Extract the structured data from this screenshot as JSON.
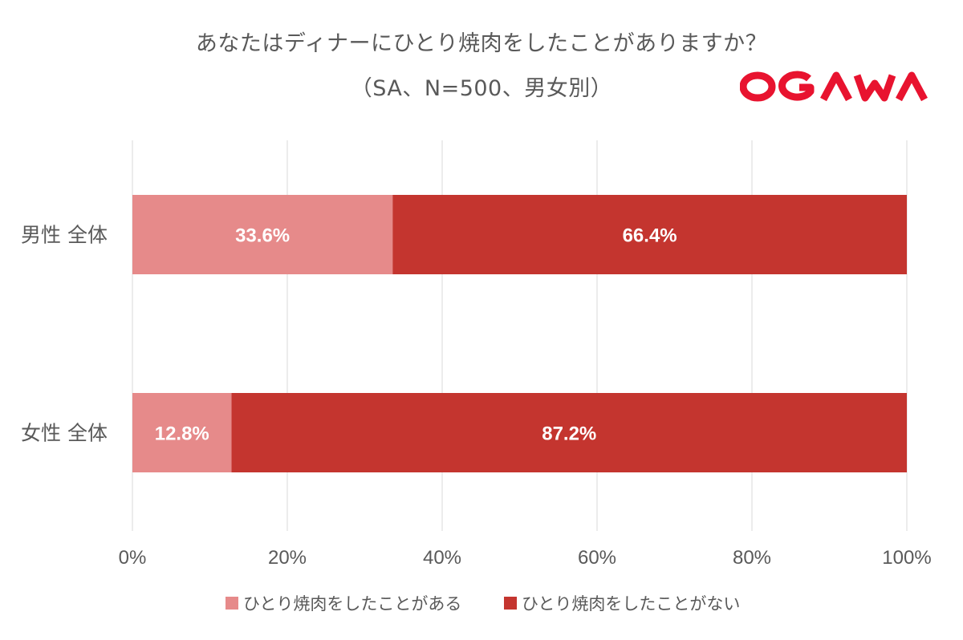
{
  "brand": {
    "logo_text": "OGAWA",
    "color": "#e8132f"
  },
  "chart_data": {
    "type": "bar",
    "orientation": "horizontal",
    "stacked": true,
    "normalized": true,
    "title": "あなたはディナーにひとり焼肉をしたことがありますか？",
    "subtitle": "（SA、N=500、男女別）",
    "categories": [
      "男性 全体",
      "女性 全体"
    ],
    "series": [
      {
        "name": "ひとり焼肉をしたことがある",
        "values": [
          33.6,
          12.8
        ],
        "labels": [
          "33.6%",
          "12.8%"
        ],
        "color": "#e68a8a"
      },
      {
        "name": "ひとり焼肉をしたことがない",
        "values": [
          66.4,
          87.2
        ],
        "labels": [
          "66.4%",
          "87.2%"
        ],
        "color": "#c4352f"
      }
    ],
    "xlim": [
      0,
      100
    ],
    "x_ticks": [
      "0%",
      "20%",
      "40%",
      "60%",
      "80%",
      "100%"
    ],
    "grid": true,
    "legend_position": "bottom",
    "data_label_color": "#ffffff",
    "axis_text_color": "#595959",
    "grid_color": "#e6e6e6"
  }
}
